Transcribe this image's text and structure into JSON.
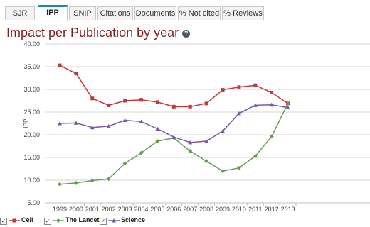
{
  "tabs": [
    {
      "label": "SJR",
      "active": false
    },
    {
      "label": "IPP",
      "active": true
    },
    {
      "label": "SNIP",
      "active": false
    },
    {
      "label": "Citations",
      "active": false
    },
    {
      "label": "Documents",
      "active": false
    },
    {
      "label": "% Not cited",
      "active": false
    },
    {
      "label": "% Reviews",
      "active": false
    }
  ],
  "help_icon": "question-icon",
  "chart_data": {
    "type": "line",
    "title": "Impact per Publication by year",
    "xlabel": "",
    "ylabel": "IPP",
    "x": [
      "1999",
      "2000",
      "2001",
      "2002",
      "2003",
      "2004",
      "2005",
      "2006",
      "2007",
      "2008",
      "2009",
      "2010",
      "2011",
      "2012",
      "2013"
    ],
    "y_ticks": [
      "5.00",
      "10.00",
      "15.00",
      "20.00",
      "25.00",
      "30.00",
      "35.00",
      "40.00"
    ],
    "ylim": [
      5,
      40
    ],
    "grid": true,
    "legend_position": "bottom-left",
    "series": [
      {
        "name": "Cell",
        "color": "#c0393b",
        "marker": "square",
        "values": [
          35.3,
          33.5,
          28.0,
          26.5,
          27.5,
          27.7,
          27.2,
          26.2,
          26.2,
          26.9,
          29.9,
          30.5,
          30.9,
          29.3,
          26.9
        ]
      },
      {
        "name": "The Lancet",
        "color": "#6a9b58",
        "marker": "diamond",
        "values": [
          9.1,
          9.4,
          9.9,
          10.3,
          13.7,
          16.0,
          18.6,
          19.3,
          16.4,
          14.2,
          12.0,
          12.7,
          15.3,
          19.6,
          26.9
        ]
      },
      {
        "name": "Science",
        "color": "#7a5aa8",
        "marker": "triangle",
        "values": [
          22.5,
          22.6,
          21.6,
          21.9,
          23.2,
          22.9,
          21.3,
          19.5,
          18.3,
          18.6,
          20.8,
          24.7,
          26.5,
          26.6,
          26.0
        ]
      }
    ]
  }
}
